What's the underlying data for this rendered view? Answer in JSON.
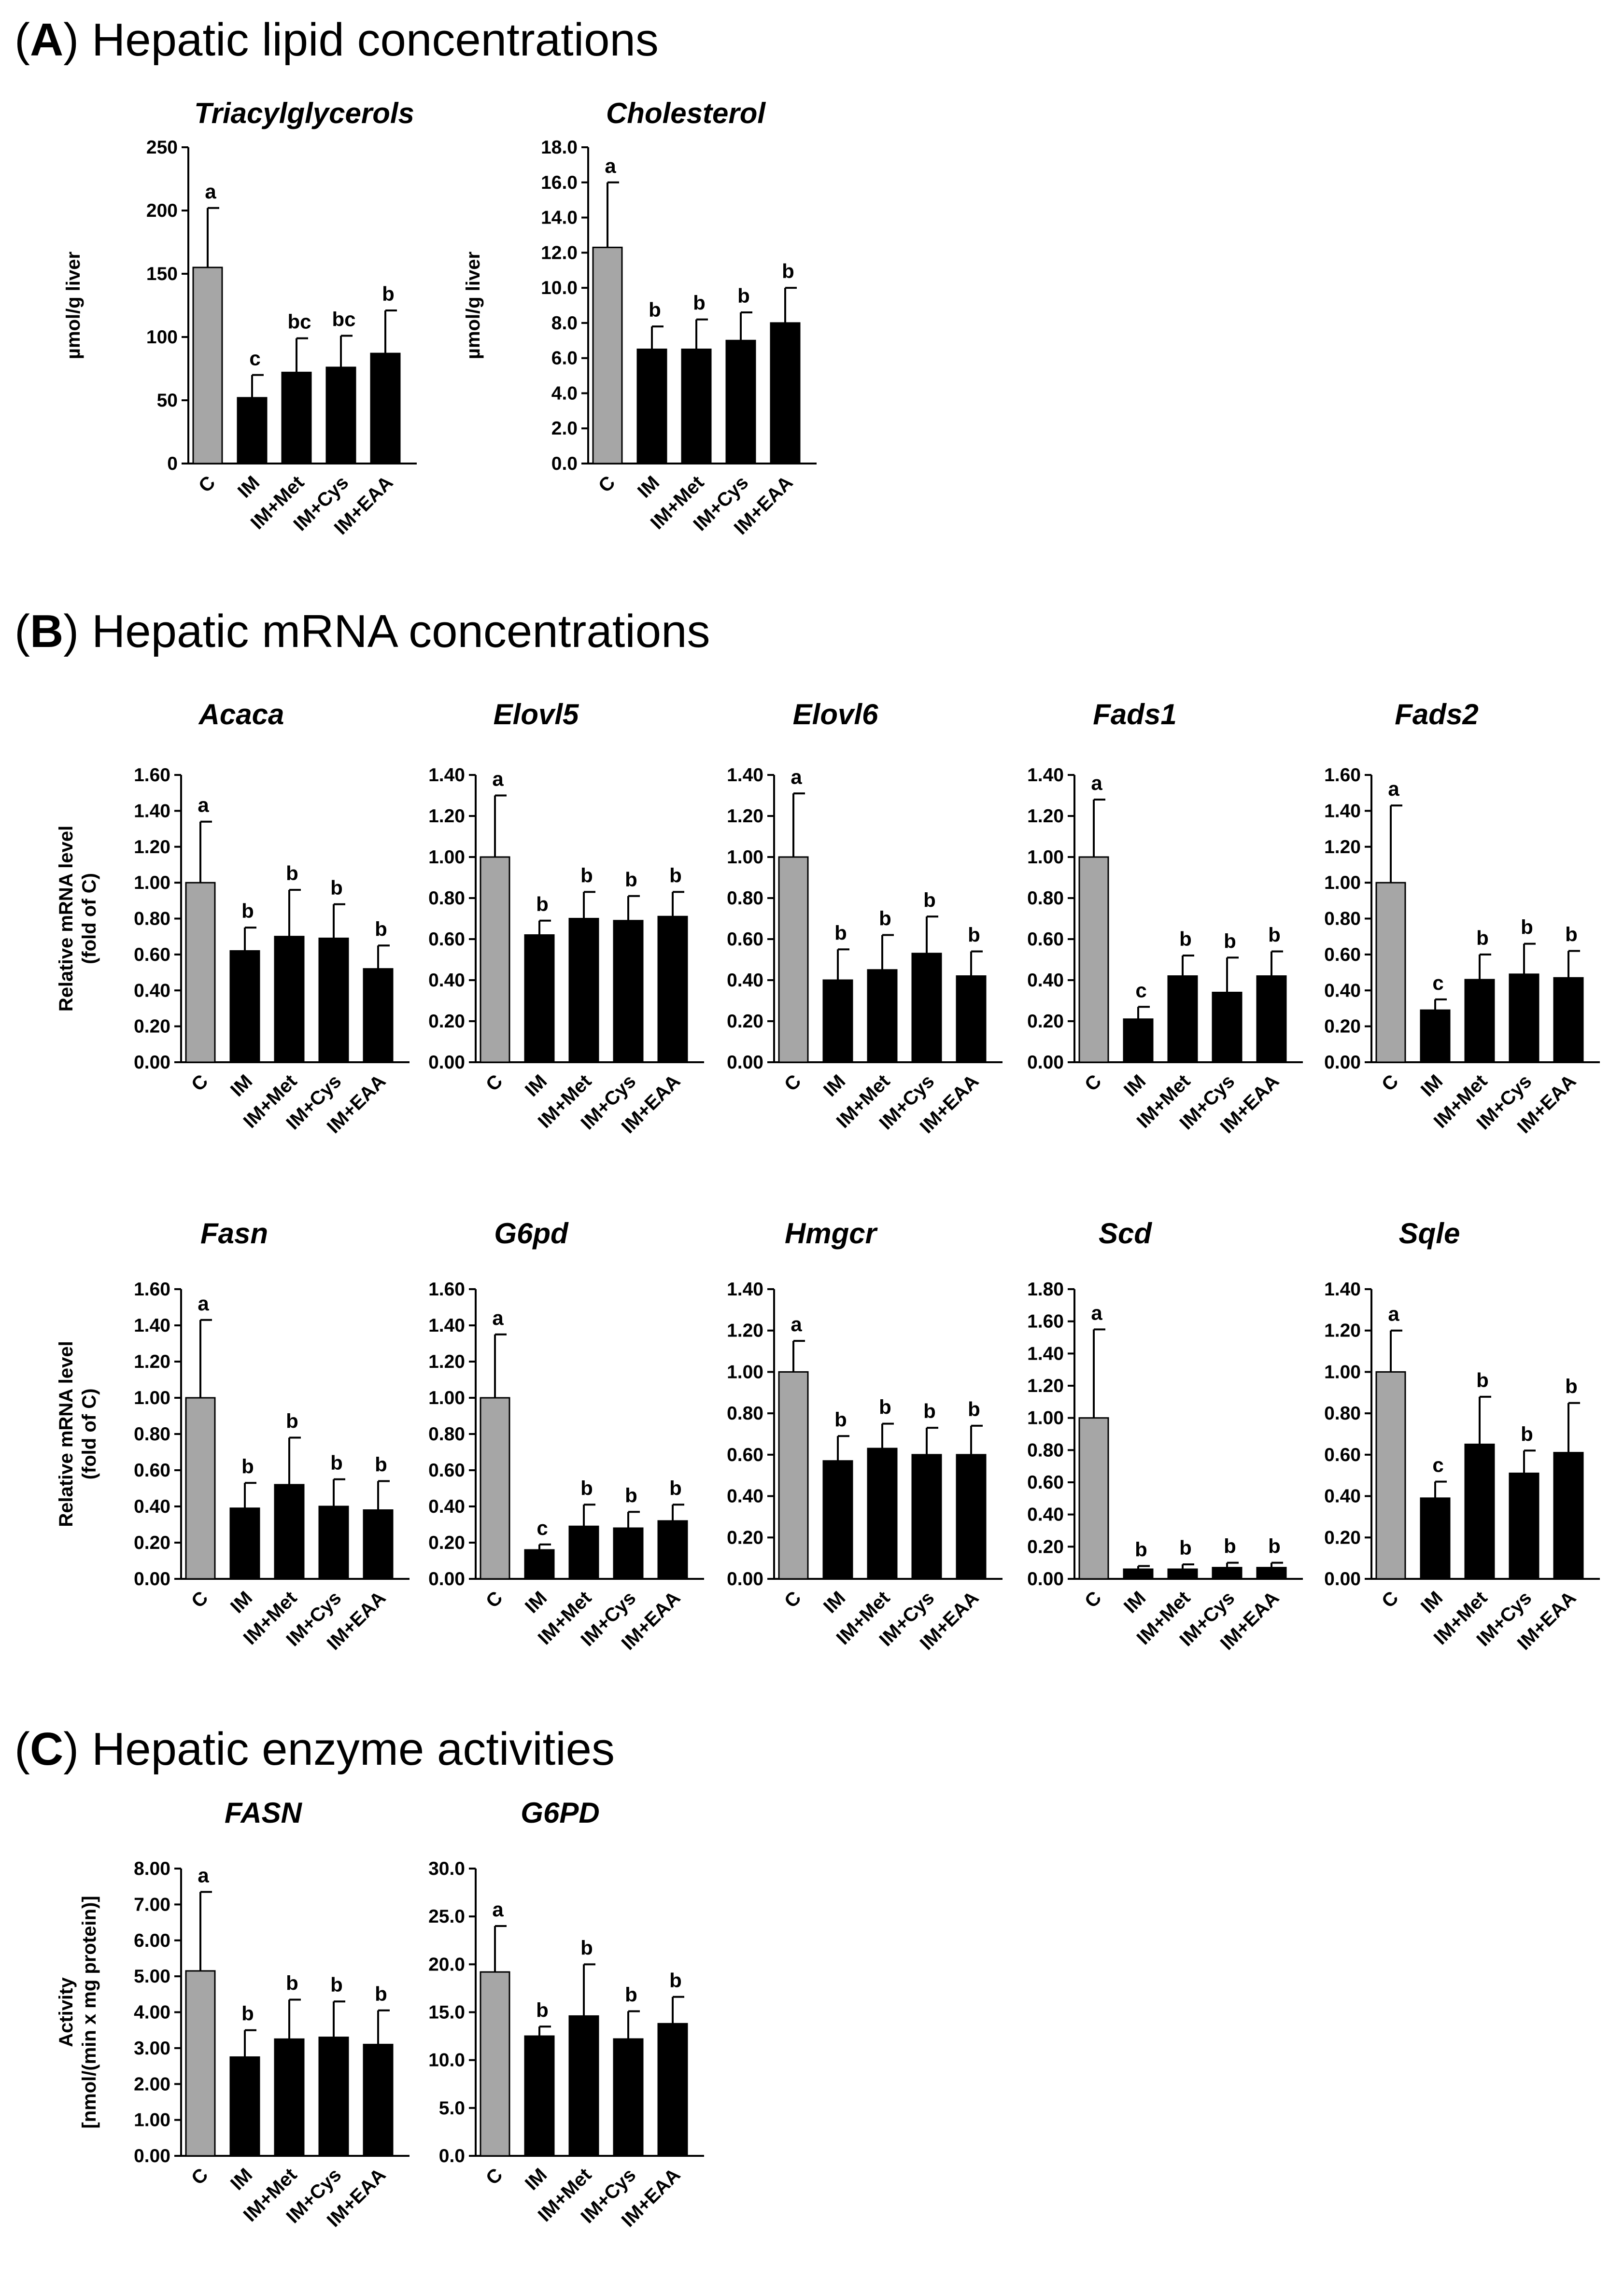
{
  "sections": {
    "A": {
      "letter": "A",
      "title": "Hepatic lipid concentrations"
    },
    "B": {
      "letter": "B",
      "title": "Hepatic mRNA concentrations"
    },
    "C": {
      "letter": "C",
      "title": "Hepatic enzyme activities"
    }
  },
  "categories": [
    "C",
    "IM",
    "IM+Met",
    "IM+Cys",
    "IM+EAA"
  ],
  "colors": {
    "control": "#a6a6a6",
    "treatment": "#000000",
    "axis": "#000000"
  },
  "chart_data": [
    {
      "type": "bar",
      "section": "A",
      "title": "Triacylglycerols",
      "ylabel": [
        "µmol/g liver"
      ],
      "ylim": [
        0,
        250
      ],
      "ticks": [
        0,
        50,
        100,
        150,
        200,
        250
      ],
      "tick_labels": [
        "0",
        "50",
        "100",
        "150",
        "200",
        "250"
      ],
      "categories": [
        "C",
        "IM",
        "IM+Met",
        "IM+Cys",
        "IM+EAA"
      ],
      "values": [
        155,
        52,
        72,
        76,
        87
      ],
      "errors": [
        47,
        18,
        27,
        25,
        34
      ],
      "significance": [
        "a",
        "c",
        "bc",
        "bc",
        "b"
      ]
    },
    {
      "type": "bar",
      "section": "A",
      "title": "Cholesterol",
      "ylabel": [
        "µmol/g liver"
      ],
      "ylim": [
        0,
        18
      ],
      "ticks": [
        0,
        2,
        4,
        6,
        8,
        10,
        12,
        14,
        16,
        18
      ],
      "tick_labels": [
        "0.0",
        "2.0",
        "4.0",
        "6.0",
        "8.0",
        "10.0",
        "12.0",
        "14.0",
        "16.0",
        "18.0"
      ],
      "categories": [
        "C",
        "IM",
        "IM+Met",
        "IM+Cys",
        "IM+EAA"
      ],
      "values": [
        12.3,
        6.5,
        6.5,
        7.0,
        8.0
      ],
      "errors": [
        3.7,
        1.3,
        1.7,
        1.6,
        2.0
      ],
      "significance": [
        "a",
        "b",
        "b",
        "b",
        "b"
      ]
    },
    {
      "type": "bar",
      "section": "B",
      "title": "Acaca",
      "ylabel": [
        "Relative mRNA level",
        "(fold of C)"
      ],
      "ylim": [
        0,
        1.6
      ],
      "ticks": [
        0,
        0.2,
        0.4,
        0.6,
        0.8,
        1.0,
        1.2,
        1.4,
        1.6
      ],
      "tick_labels": [
        "0.00",
        "0.20",
        "0.40",
        "0.60",
        "0.80",
        "1.00",
        "1.20",
        "1.40",
        "1.60"
      ],
      "categories": [
        "C",
        "IM",
        "IM+Met",
        "IM+Cys",
        "IM+EAA"
      ],
      "values": [
        1.0,
        0.62,
        0.7,
        0.69,
        0.52
      ],
      "errors": [
        0.34,
        0.13,
        0.26,
        0.19,
        0.13
      ],
      "significance": [
        "a",
        "b",
        "b",
        "b",
        "b"
      ]
    },
    {
      "type": "bar",
      "section": "B",
      "title": "Elovl5",
      "ylabel": [],
      "ylim": [
        0,
        1.4
      ],
      "ticks": [
        0,
        0.2,
        0.4,
        0.6,
        0.8,
        1.0,
        1.2,
        1.4
      ],
      "tick_labels": [
        "0.00",
        "0.20",
        "0.40",
        "0.60",
        "0.80",
        "1.00",
        "1.20",
        "1.40"
      ],
      "categories": [
        "C",
        "IM",
        "IM+Met",
        "IM+Cys",
        "IM+EAA"
      ],
      "values": [
        1.0,
        0.62,
        0.7,
        0.69,
        0.71
      ],
      "errors": [
        0.3,
        0.07,
        0.13,
        0.12,
        0.12
      ],
      "significance": [
        "a",
        "b",
        "b",
        "b",
        "b"
      ]
    },
    {
      "type": "bar",
      "section": "B",
      "title": "Elovl6",
      "ylabel": [],
      "ylim": [
        0,
        1.4
      ],
      "ticks": [
        0,
        0.2,
        0.4,
        0.6,
        0.8,
        1.0,
        1.2,
        1.4
      ],
      "tick_labels": [
        "0.00",
        "0.20",
        "0.40",
        "0.60",
        "0.80",
        "1.00",
        "1.20",
        "1.40"
      ],
      "categories": [
        "C",
        "IM",
        "IM+Met",
        "IM+Cys",
        "IM+EAA"
      ],
      "values": [
        1.0,
        0.4,
        0.45,
        0.53,
        0.42
      ],
      "errors": [
        0.31,
        0.15,
        0.17,
        0.18,
        0.12
      ],
      "significance": [
        "a",
        "b",
        "b",
        "b",
        "b"
      ]
    },
    {
      "type": "bar",
      "section": "B",
      "title": "Fads1",
      "ylabel": [],
      "ylim": [
        0,
        1.4
      ],
      "ticks": [
        0,
        0.2,
        0.4,
        0.6,
        0.8,
        1.0,
        1.2,
        1.4
      ],
      "tick_labels": [
        "0.00",
        "0.20",
        "0.40",
        "0.60",
        "0.80",
        "1.00",
        "1.20",
        "1.40"
      ],
      "categories": [
        "C",
        "IM",
        "IM+Met",
        "IM+Cys",
        "IM+EAA"
      ],
      "values": [
        1.0,
        0.21,
        0.42,
        0.34,
        0.42
      ],
      "errors": [
        0.28,
        0.06,
        0.1,
        0.17,
        0.12
      ],
      "significance": [
        "a",
        "c",
        "b",
        "b",
        "b"
      ]
    },
    {
      "type": "bar",
      "section": "B",
      "title": "Fads2",
      "ylabel": [],
      "ylim": [
        0,
        1.6
      ],
      "ticks": [
        0,
        0.2,
        0.4,
        0.6,
        0.8,
        1.0,
        1.2,
        1.4,
        1.6
      ],
      "tick_labels": [
        "0.00",
        "0.20",
        "0.40",
        "0.60",
        "0.80",
        "1.00",
        "1.20",
        "1.40",
        "1.60"
      ],
      "categories": [
        "C",
        "IM",
        "IM+Met",
        "IM+Cys",
        "IM+EAA"
      ],
      "values": [
        1.0,
        0.29,
        0.46,
        0.49,
        0.47
      ],
      "errors": [
        0.43,
        0.06,
        0.14,
        0.17,
        0.15
      ],
      "significance": [
        "a",
        "c",
        "b",
        "b",
        "b"
      ]
    },
    {
      "type": "bar",
      "section": "B",
      "title": "Fasn",
      "ylabel": [
        "Relative mRNA level",
        "(fold of C)"
      ],
      "ylim": [
        0,
        1.6
      ],
      "ticks": [
        0,
        0.2,
        0.4,
        0.6,
        0.8,
        1.0,
        1.2,
        1.4,
        1.6
      ],
      "tick_labels": [
        "0.00",
        "0.20",
        "0.40",
        "0.60",
        "0.80",
        "1.00",
        "1.20",
        "1.40",
        "1.60"
      ],
      "categories": [
        "C",
        "IM",
        "IM+Met",
        "IM+Cys",
        "IM+EAA"
      ],
      "values": [
        1.0,
        0.39,
        0.52,
        0.4,
        0.38
      ],
      "errors": [
        0.43,
        0.14,
        0.26,
        0.15,
        0.16
      ],
      "significance": [
        "a",
        "b",
        "b",
        "b",
        "b"
      ]
    },
    {
      "type": "bar",
      "section": "B",
      "title": "G6pd",
      "ylabel": [],
      "ylim": [
        0,
        1.6
      ],
      "ticks": [
        0,
        0.2,
        0.4,
        0.6,
        0.8,
        1.0,
        1.2,
        1.4,
        1.6
      ],
      "tick_labels": [
        "0.00",
        "0.20",
        "0.40",
        "0.60",
        "0.80",
        "1.00",
        "1.20",
        "1.40",
        "1.60"
      ],
      "categories": [
        "C",
        "IM",
        "IM+Met",
        "IM+Cys",
        "IM+EAA"
      ],
      "values": [
        1.0,
        0.16,
        0.29,
        0.28,
        0.32
      ],
      "errors": [
        0.35,
        0.03,
        0.12,
        0.09,
        0.09
      ],
      "significance": [
        "a",
        "c",
        "b",
        "b",
        "b"
      ]
    },
    {
      "type": "bar",
      "section": "B",
      "title": "Hmgcr",
      "ylabel": [],
      "ylim": [
        0,
        1.4
      ],
      "ticks": [
        0,
        0.2,
        0.4,
        0.6,
        0.8,
        1.0,
        1.2,
        1.4
      ],
      "tick_labels": [
        "0.00",
        "0.20",
        "0.40",
        "0.60",
        "0.80",
        "1.00",
        "1.20",
        "1.40"
      ],
      "categories": [
        "C",
        "IM",
        "IM+Met",
        "IM+Cys",
        "IM+EAA"
      ],
      "values": [
        1.0,
        0.57,
        0.63,
        0.6,
        0.6
      ],
      "errors": [
        0.15,
        0.12,
        0.12,
        0.13,
        0.14
      ],
      "significance": [
        "a",
        "b",
        "b",
        "b",
        "b"
      ]
    },
    {
      "type": "bar",
      "section": "B",
      "title": "Scd",
      "ylabel": [],
      "ylim": [
        0,
        1.8
      ],
      "ticks": [
        0,
        0.2,
        0.4,
        0.6,
        0.8,
        1.0,
        1.2,
        1.4,
        1.6,
        1.8
      ],
      "tick_labels": [
        "0.00",
        "0.20",
        "0.40",
        "0.60",
        "0.80",
        "1.00",
        "1.20",
        "1.40",
        "1.60",
        "1.80"
      ],
      "categories": [
        "C",
        "IM",
        "IM+Met",
        "IM+Cys",
        "IM+EAA"
      ],
      "values": [
        1.0,
        0.06,
        0.06,
        0.07,
        0.07
      ],
      "errors": [
        0.55,
        0.02,
        0.03,
        0.03,
        0.03
      ],
      "significance": [
        "a",
        "b",
        "b",
        "b",
        "b"
      ]
    },
    {
      "type": "bar",
      "section": "B",
      "title": "Sqle",
      "ylabel": [],
      "ylim": [
        0,
        1.4
      ],
      "ticks": [
        0,
        0.2,
        0.4,
        0.6,
        0.8,
        1.0,
        1.2,
        1.4
      ],
      "tick_labels": [
        "0.00",
        "0.20",
        "0.40",
        "0.60",
        "0.80",
        "1.00",
        "1.20",
        "1.40"
      ],
      "categories": [
        "C",
        "IM",
        "IM+Met",
        "IM+Cys",
        "IM+EAA"
      ],
      "values": [
        1.0,
        0.39,
        0.65,
        0.51,
        0.61
      ],
      "errors": [
        0.2,
        0.08,
        0.23,
        0.11,
        0.24
      ],
      "significance": [
        "a",
        "c",
        "b",
        "b",
        "b"
      ]
    },
    {
      "type": "bar",
      "section": "C",
      "title": "FASN",
      "ylabel": [
        "Activity",
        "[nmol/(min x mg protein)]"
      ],
      "ylim": [
        0,
        8
      ],
      "ticks": [
        0,
        1,
        2,
        3,
        4,
        5,
        6,
        7,
        8
      ],
      "tick_labels": [
        "0.00",
        "1.00",
        "2.00",
        "3.00",
        "4.00",
        "5.00",
        "6.00",
        "7.00",
        "8.00"
      ],
      "categories": [
        "C",
        "IM",
        "IM+Met",
        "IM+Cys",
        "IM+EAA"
      ],
      "values": [
        5.15,
        2.75,
        3.25,
        3.3,
        3.1
      ],
      "errors": [
        2.2,
        0.75,
        1.1,
        1.0,
        0.95
      ],
      "significance": [
        "a",
        "b",
        "b",
        "b",
        "b"
      ]
    },
    {
      "type": "bar",
      "section": "C",
      "title": "G6PD",
      "ylabel": [],
      "ylim": [
        0,
        30
      ],
      "ticks": [
        0,
        5,
        10,
        15,
        20,
        25,
        30
      ],
      "tick_labels": [
        "0.0",
        "5.0",
        "10.0",
        "15.0",
        "20.0",
        "25.0",
        "30.0"
      ],
      "categories": [
        "C",
        "IM",
        "IM+Met",
        "IM+Cys",
        "IM+EAA"
      ],
      "values": [
        19.2,
        12.5,
        14.6,
        12.2,
        13.8
      ],
      "errors": [
        4.8,
        1.0,
        5.4,
        2.9,
        2.8
      ],
      "significance": [
        "a",
        "b",
        "b",
        "b",
        "b"
      ]
    }
  ]
}
